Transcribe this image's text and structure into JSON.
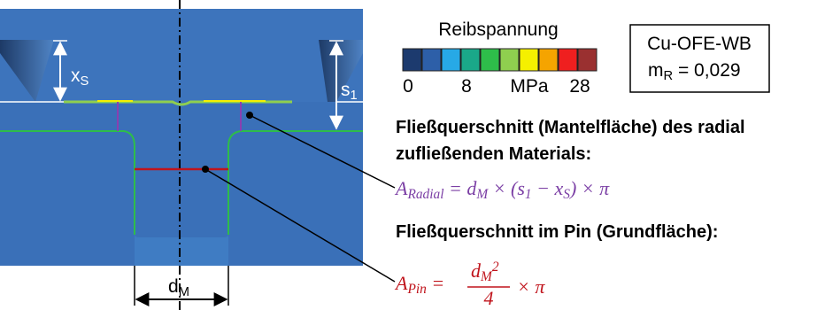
{
  "legend": {
    "title": "Reibspannung",
    "colors": [
      "#1c3a6e",
      "#2d5fa8",
      "#27a9e6",
      "#1aa889",
      "#2ebd4a",
      "#8fcf4f",
      "#f5f000",
      "#f5a400",
      "#ef1f1f",
      "#9a3030"
    ],
    "labels": [
      "0",
      "8",
      "MPa",
      "28"
    ]
  },
  "material_box": {
    "line1": "Cu-OFE-WB",
    "line2": [
      {
        "t": "m"
      },
      {
        "t": "R",
        "sub": true
      },
      {
        "t": " = 0,029"
      }
    ]
  },
  "heading_radial": [
    "Fließquerschnitt (Mantelfläche) des radial",
    "zufließenden Materials:"
  ],
  "formula_radial": [
    {
      "t": "A"
    },
    {
      "t": "Radial",
      "sub": true
    },
    {
      "t": " =  d"
    },
    {
      "t": "M",
      "sub": true
    },
    {
      "t": " × (s"
    },
    {
      "t": "1",
      "sub": true
    },
    {
      "t": " − x"
    },
    {
      "t": "S",
      "sub": true
    },
    {
      "t": ") × π"
    }
  ],
  "heading_pin": "Fließquerschnitt im Pin (Grundfläche):",
  "formula_pin": {
    "lhs": [
      {
        "t": "A"
      },
      {
        "t": "Pin",
        "sub": true
      },
      {
        "t": " = "
      }
    ],
    "numerator": [
      {
        "t": "d"
      },
      {
        "t": "M",
        "sub": true
      },
      {
        "t": "2",
        "sup": true
      }
    ],
    "denominator": "4",
    "rhs": "× π"
  },
  "labels": {
    "xs": [
      {
        "t": "x"
      },
      {
        "t": "S",
        "sub": true
      }
    ],
    "s1": [
      {
        "t": "s"
      },
      {
        "t": "1",
        "sub": true
      }
    ],
    "dm": [
      {
        "t": "d"
      },
      {
        "t": "M",
        "sub": true
      }
    ]
  }
}
